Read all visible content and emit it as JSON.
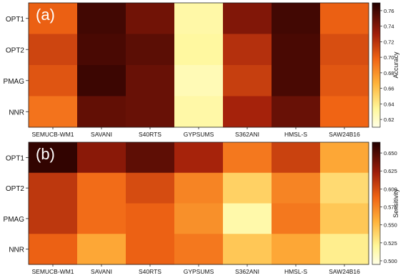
{
  "chart_data": [
    {
      "type": "heatmap",
      "panel_label": "(a)",
      "categories": [
        "SEMUCB-WM1",
        "SAVANI",
        "S40RTS",
        "GYPSUMS",
        "S362ANI",
        "HMSL-S",
        "SAW24B16"
      ],
      "rows": [
        "OPT1",
        "OPT2",
        "PMAG",
        "NNR"
      ],
      "values": [
        [
          0.7,
          0.76,
          0.745,
          0.63,
          0.74,
          0.76,
          0.7
        ],
        [
          0.712,
          0.758,
          0.752,
          0.632,
          0.722,
          0.758,
          0.708
        ],
        [
          0.705,
          0.762,
          0.748,
          0.625,
          0.715,
          0.758,
          0.704
        ],
        [
          0.692,
          0.75,
          0.748,
          0.63,
          0.728,
          0.748,
          0.698
        ]
      ],
      "colorbar": {
        "label": "Accuracy",
        "range": [
          0.61,
          0.77
        ],
        "ticks": [
          "0.62",
          "0.64",
          "0.66",
          "0.68",
          "0.70",
          "0.72",
          "0.74",
          "0.76"
        ]
      },
      "colormap": "afmhot_r"
    },
    {
      "type": "heatmap",
      "panel_label": "(b)",
      "categories": [
        "SEMUCB-WM1",
        "SAVANI",
        "S40RTS",
        "GYPSUMS",
        "S362ANI",
        "HMSL-S",
        "SAW24B16"
      ],
      "rows": [
        "OPT1",
        "OPT2",
        "PMAG",
        "NNR"
      ],
      "values": [
        [
          0.66,
          0.63,
          0.645,
          0.62,
          0.58,
          0.605,
          0.56
        ],
        [
          0.61,
          0.585,
          0.6,
          0.575,
          0.54,
          0.575,
          0.535
        ],
        [
          0.61,
          0.585,
          0.59,
          0.57,
          0.515,
          0.58,
          0.545
        ],
        [
          0.59,
          0.56,
          0.59,
          0.58,
          0.545,
          0.56,
          0.525
        ]
      ],
      "colorbar": {
        "label": "Sensitivity",
        "range": [
          0.495,
          0.665
        ],
        "ticks": [
          "0.500",
          "0.525",
          "0.550",
          "0.575",
          "0.600",
          "0.625",
          "0.650"
        ]
      },
      "colormap": "afmhot_r"
    }
  ]
}
